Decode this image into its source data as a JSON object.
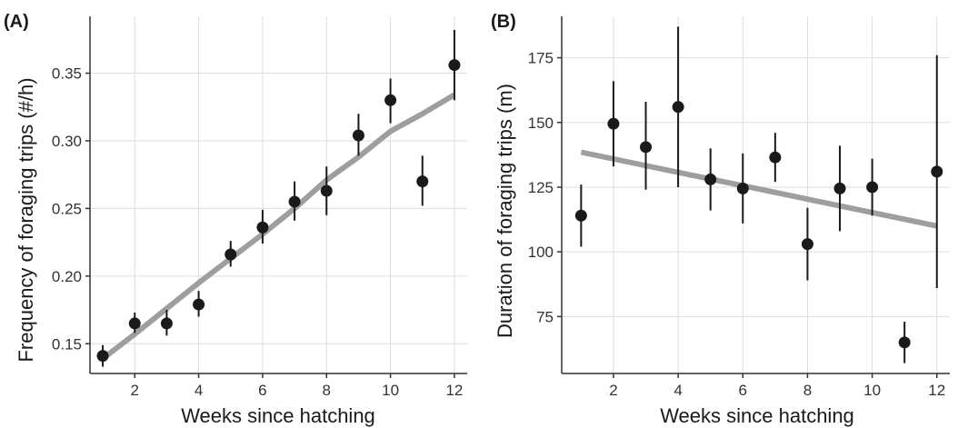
{
  "chart_data": [
    {
      "type": "scatter",
      "panel_label": "(A)",
      "xlabel": "Weeks since hatching",
      "ylabel": "Frequency of foraging trips (#/h)",
      "xlim": [
        0.6,
        12.4
      ],
      "ylim": [
        0.128,
        0.392
      ],
      "xticks": [
        2,
        4,
        6,
        8,
        10,
        12
      ],
      "xtick_labels": [
        "2",
        "4",
        "6",
        "8",
        "10",
        "12"
      ],
      "yticks": [
        0.15,
        0.2,
        0.25,
        0.3,
        0.35
      ],
      "ytick_labels": [
        "0.15",
        "0.20",
        "0.25",
        "0.30",
        "0.35"
      ],
      "grid": true,
      "points": [
        {
          "x": 1,
          "y": 0.141,
          "lo": 0.133,
          "hi": 0.149
        },
        {
          "x": 2,
          "y": 0.165,
          "lo": 0.158,
          "hi": 0.173
        },
        {
          "x": 3,
          "y": 0.165,
          "lo": 0.156,
          "hi": 0.175
        },
        {
          "x": 4,
          "y": 0.179,
          "lo": 0.17,
          "hi": 0.189
        },
        {
          "x": 5,
          "y": 0.216,
          "lo": 0.207,
          "hi": 0.226
        },
        {
          "x": 6,
          "y": 0.236,
          "lo": 0.224,
          "hi": 0.249
        },
        {
          "x": 7,
          "y": 0.255,
          "lo": 0.241,
          "hi": 0.27
        },
        {
          "x": 8,
          "y": 0.263,
          "lo": 0.245,
          "hi": 0.281
        },
        {
          "x": 9,
          "y": 0.304,
          "lo": 0.289,
          "hi": 0.32
        },
        {
          "x": 10,
          "y": 0.33,
          "lo": 0.313,
          "hi": 0.346
        },
        {
          "x": 11,
          "y": 0.27,
          "lo": 0.252,
          "hi": 0.289
        },
        {
          "x": 12,
          "y": 0.356,
          "lo": 0.33,
          "hi": 0.382
        }
      ],
      "fit_line": {
        "x": [
          1,
          2,
          3,
          4,
          5,
          6,
          7,
          8,
          9,
          10,
          11,
          12
        ],
        "y": [
          0.139,
          0.157,
          0.176,
          0.195,
          0.213,
          0.231,
          0.25,
          0.271,
          0.288,
          0.307,
          0.32,
          0.334
        ]
      },
      "colors": {
        "points": "#1a1a1a",
        "fit": "#9e9e9e",
        "grid": "#dddddd",
        "axis": "#333333"
      }
    },
    {
      "type": "scatter",
      "panel_label": "(B)",
      "xlabel": "Weeks since hatching",
      "ylabel": "Duration of foraging trips (m)",
      "xlim": [
        0.4,
        12.4
      ],
      "ylim": [
        53,
        191
      ],
      "xticks": [
        2,
        4,
        6,
        8,
        10,
        12
      ],
      "xtick_labels": [
        "2",
        "4",
        "6",
        "8",
        "10",
        "12"
      ],
      "yticks": [
        75,
        100,
        125,
        150,
        175
      ],
      "ytick_labels": [
        "75",
        "100",
        "125",
        "150",
        "175"
      ],
      "grid": true,
      "points": [
        {
          "x": 1,
          "y": 114,
          "lo": 102,
          "hi": 126
        },
        {
          "x": 2,
          "y": 149.5,
          "lo": 133,
          "hi": 166
        },
        {
          "x": 3,
          "y": 140.5,
          "lo": 124,
          "hi": 158
        },
        {
          "x": 4,
          "y": 156,
          "lo": 125,
          "hi": 187
        },
        {
          "x": 5,
          "y": 128,
          "lo": 116,
          "hi": 140
        },
        {
          "x": 6,
          "y": 124.5,
          "lo": 111,
          "hi": 138
        },
        {
          "x": 7,
          "y": 136.5,
          "lo": 127,
          "hi": 146
        },
        {
          "x": 8,
          "y": 103,
          "lo": 89,
          "hi": 117
        },
        {
          "x": 9,
          "y": 124.5,
          "lo": 108,
          "hi": 141
        },
        {
          "x": 10,
          "y": 125,
          "lo": 114,
          "hi": 136
        },
        {
          "x": 11,
          "y": 65,
          "lo": 57,
          "hi": 73
        },
        {
          "x": 12,
          "y": 131,
          "lo": 86,
          "hi": 176
        }
      ],
      "fit_line": {
        "x": [
          1,
          12
        ],
        "y": [
          138.5,
          110
        ]
      },
      "colors": {
        "points": "#1a1a1a",
        "fit": "#9e9e9e",
        "grid": "#dddddd",
        "axis": "#333333"
      }
    }
  ]
}
